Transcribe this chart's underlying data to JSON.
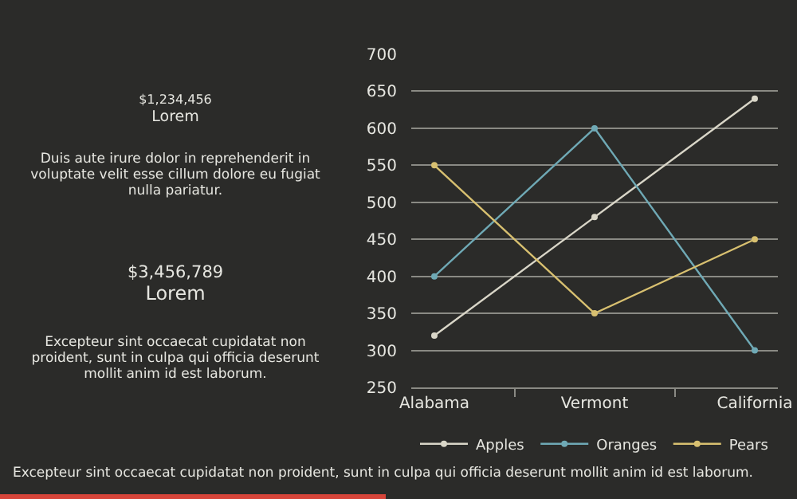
{
  "chart_data": {
    "type": "line",
    "categories": [
      "Alabama",
      "Vermont",
      "California"
    ],
    "series": [
      {
        "name": "Apples",
        "color": "#d9d6c8",
        "values": [
          320,
          480,
          640
        ]
      },
      {
        "name": "Oranges",
        "color": "#6fa9b5",
        "values": [
          400,
          600,
          300
        ]
      },
      {
        "name": "Pears",
        "color": "#d8c070",
        "values": [
          550,
          350,
          450
        ]
      }
    ],
    "ylim": [
      250,
      700
    ],
    "yticks": [
      250,
      300,
      350,
      400,
      450,
      500,
      550,
      600,
      650,
      700
    ],
    "grid": "y",
    "legend": "bottom",
    "marker": "circle",
    "line_style": "solid",
    "annotations": [
      "$1,234,456",
      "Lorem",
      "Duis aute irure dolor in reprehenderit in voluptate velit esse cillum dolore eu fugiat nulla pariatur.",
      "$3,456,789",
      "Lorem",
      "Excepteur sint occaecat cupidatat non proident, sunt in culpa qui officia deserunt mollit anim id est laborum.",
      "Excepteur sint occaecat cupidatat non proident, sunt in culpa qui officia deserunt mollit anim id est laborum."
    ]
  }
}
